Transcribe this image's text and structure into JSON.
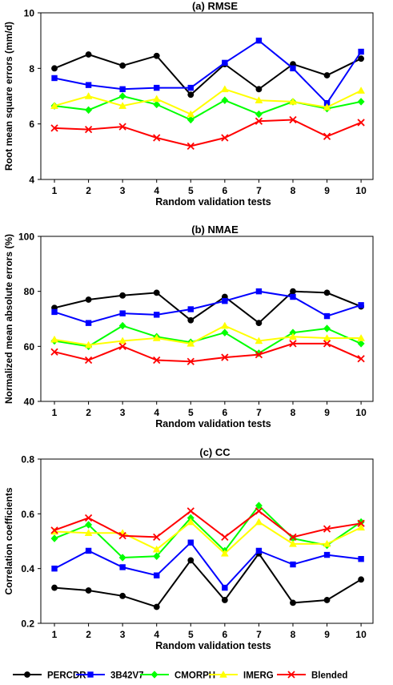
{
  "legend": {
    "items": [
      {
        "label": "PERCDR",
        "color": "#000000",
        "marker": "circle"
      },
      {
        "label": "3B42V7",
        "color": "#0000ff",
        "marker": "square"
      },
      {
        "label": "CMORPH",
        "color": "#00ff00",
        "marker": "diamond"
      },
      {
        "label": "IMERG",
        "color": "#ffff00",
        "marker": "triangle"
      },
      {
        "label": "Blended",
        "color": "#ff0000",
        "marker": "x"
      }
    ]
  },
  "chart_data": [
    {
      "type": "line",
      "title": "(a) RMSE",
      "xlabel": "Random validation tests",
      "ylabel": "Root mean square errors (mm/d)",
      "x": [
        1,
        2,
        3,
        4,
        5,
        6,
        7,
        8,
        9,
        10
      ],
      "ylim": [
        4,
        10
      ],
      "yticks": [
        4,
        6,
        8,
        10
      ],
      "grid": false,
      "series": [
        {
          "name": "PERCDR",
          "values": [
            8.0,
            8.5,
            8.1,
            8.45,
            7.05,
            8.15,
            7.25,
            8.15,
            7.75,
            8.35
          ]
        },
        {
          "name": "3B42V7",
          "values": [
            7.65,
            7.4,
            7.25,
            7.3,
            7.3,
            8.2,
            9.0,
            8.0,
            6.75,
            8.6
          ]
        },
        {
          "name": "CMORPH",
          "values": [
            6.65,
            6.5,
            7.0,
            6.7,
            6.15,
            6.85,
            6.35,
            6.8,
            6.55,
            6.8
          ]
        },
        {
          "name": "IMERG",
          "values": [
            6.65,
            7.0,
            6.65,
            6.9,
            6.35,
            7.25,
            6.85,
            6.8,
            6.6,
            7.2
          ]
        },
        {
          "name": "Blended",
          "values": [
            5.85,
            5.8,
            5.9,
            5.5,
            5.2,
            5.5,
            6.1,
            6.15,
            5.55,
            6.05
          ]
        }
      ]
    },
    {
      "type": "line",
      "title": "(b) NMAE",
      "xlabel": "Random validation tests",
      "ylabel": "Normalized mean absolute errors (%)",
      "x": [
        1,
        2,
        3,
        4,
        5,
        6,
        7,
        8,
        9,
        10
      ],
      "ylim": [
        40,
        100
      ],
      "yticks": [
        40,
        60,
        80,
        100
      ],
      "grid": false,
      "series": [
        {
          "name": "PERCDR",
          "values": [
            74,
            77,
            78.5,
            79.5,
            69.5,
            78,
            68.5,
            80,
            79.5,
            74.5
          ]
        },
        {
          "name": "3B42V7",
          "values": [
            72.5,
            68.5,
            72,
            71.5,
            73.5,
            76.5,
            80,
            78,
            71,
            75
          ]
        },
        {
          "name": "CMORPH",
          "values": [
            62,
            60,
            67.5,
            63.5,
            61.5,
            65,
            57.5,
            65,
            66.5,
            61
          ]
        },
        {
          "name": "IMERG",
          "values": [
            62.5,
            60.5,
            62,
            63,
            61,
            67.5,
            62,
            63.5,
            63,
            63
          ]
        },
        {
          "name": "Blended",
          "values": [
            58,
            55,
            60,
            55,
            54.5,
            56,
            57,
            61,
            61,
            55.5
          ]
        }
      ]
    },
    {
      "type": "line",
      "title": "(c) CC",
      "xlabel": "Random validation tests",
      "ylabel": "Correlation coefficients",
      "x": [
        1,
        2,
        3,
        4,
        5,
        6,
        7,
        8,
        9,
        10
      ],
      "ylim": [
        0.2,
        0.8
      ],
      "yticks": [
        0.2,
        0.4,
        0.6,
        0.8
      ],
      "grid": false,
      "series": [
        {
          "name": "PERCDR",
          "values": [
            0.33,
            0.32,
            0.3,
            0.26,
            0.43,
            0.285,
            0.455,
            0.275,
            0.285,
            0.36
          ]
        },
        {
          "name": "3B42V7",
          "values": [
            0.4,
            0.465,
            0.405,
            0.375,
            0.495,
            0.33,
            0.465,
            0.415,
            0.45,
            0.435
          ]
        },
        {
          "name": "CMORPH",
          "values": [
            0.51,
            0.56,
            0.44,
            0.445,
            0.585,
            0.465,
            0.63,
            0.51,
            0.485,
            0.57
          ]
        },
        {
          "name": "IMERG",
          "values": [
            0.535,
            0.53,
            0.53,
            0.47,
            0.57,
            0.455,
            0.57,
            0.49,
            0.49,
            0.55
          ]
        },
        {
          "name": "Blended",
          "values": [
            0.54,
            0.585,
            0.52,
            0.515,
            0.61,
            0.515,
            0.61,
            0.515,
            0.545,
            0.565
          ]
        }
      ]
    }
  ]
}
